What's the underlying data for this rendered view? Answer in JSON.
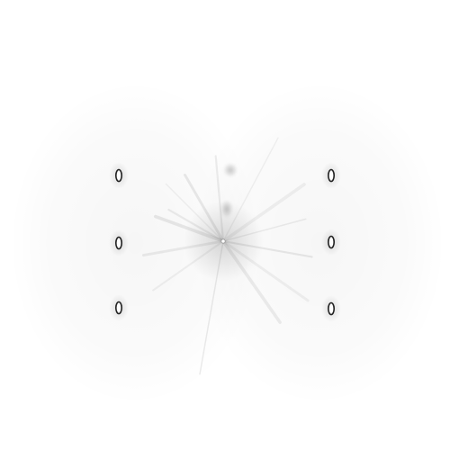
{
  "background": "#ffffff",
  "ink": "#000000",
  "scene": {
    "left_spot_count": 3,
    "right_spot_count": 3,
    "central_ray_count": 14,
    "faint_blur_count": 2
  }
}
